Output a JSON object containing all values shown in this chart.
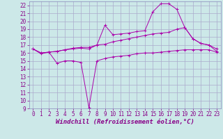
{
  "xlabel": "Windchill (Refroidissement éolien,°C)",
  "bg_color": "#cce8e8",
  "grid_color": "#aaaacc",
  "line_color": "#aa00aa",
  "xlim": [
    -0.5,
    23.5
  ],
  "ylim": [
    9,
    22.5
  ],
  "yticks": [
    9,
    10,
    11,
    12,
    13,
    14,
    15,
    16,
    17,
    18,
    19,
    20,
    21,
    22
  ],
  "xticks": [
    0,
    1,
    2,
    3,
    4,
    5,
    6,
    7,
    8,
    9,
    10,
    11,
    12,
    13,
    14,
    15,
    16,
    17,
    18,
    19,
    20,
    21,
    22,
    23
  ],
  "line1_x": [
    0,
    1,
    2,
    3,
    4,
    5,
    6,
    7,
    8,
    9,
    10,
    11,
    12,
    13,
    14,
    15,
    16,
    17,
    18,
    19,
    20,
    21,
    22,
    23
  ],
  "line1_y": [
    16.5,
    15.9,
    16.1,
    14.7,
    15.0,
    15.0,
    14.8,
    9.1,
    15.0,
    15.3,
    15.5,
    15.6,
    15.7,
    15.9,
    16.0,
    16.0,
    16.1,
    16.2,
    16.3,
    16.4,
    16.4,
    16.4,
    16.4,
    16.1
  ],
  "line2_x": [
    0,
    1,
    2,
    3,
    4,
    5,
    6,
    7,
    8,
    9,
    10,
    11,
    12,
    13,
    14,
    15,
    16,
    17,
    18,
    19,
    20,
    21,
    22,
    23
  ],
  "line2_y": [
    16.5,
    16.0,
    16.1,
    16.2,
    16.4,
    16.6,
    16.7,
    16.7,
    17.0,
    17.1,
    17.4,
    17.6,
    17.8,
    18.0,
    18.2,
    18.4,
    18.5,
    18.6,
    19.0,
    19.2,
    17.8,
    17.2,
    17.0,
    16.5
  ],
  "line3_x": [
    0,
    1,
    2,
    3,
    4,
    5,
    6,
    7,
    8,
    9,
    10,
    11,
    12,
    13,
    14,
    15,
    16,
    17,
    18,
    19,
    20,
    21,
    22,
    23
  ],
  "line3_y": [
    16.5,
    16.0,
    16.1,
    16.2,
    16.4,
    16.5,
    16.6,
    16.5,
    17.0,
    19.5,
    18.3,
    18.4,
    18.5,
    18.7,
    18.8,
    21.2,
    22.2,
    22.2,
    21.5,
    19.2,
    17.8,
    17.2,
    17.0,
    16.2
  ],
  "tick_fontsize": 5.5,
  "xlabel_fontsize": 6.5,
  "tick_color": "#880088",
  "spine_color": "#8888bb"
}
